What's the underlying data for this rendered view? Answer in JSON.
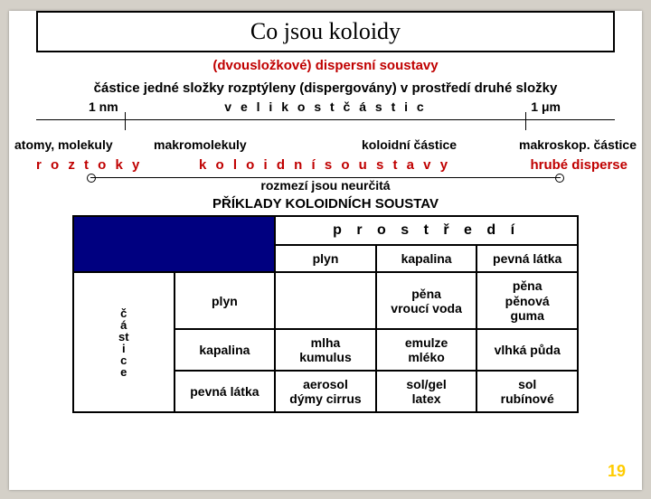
{
  "title": "Co jsou koloidy",
  "subtitle": "(dvousložkové) dispersní soustavy",
  "description": "částice jedné složky rozptýleny (dispergovány) v prostředí druhé složky",
  "scale": {
    "left": "1 nm",
    "center": "v e l i k o s t   č á s t i c",
    "right": "1 μm"
  },
  "row1": {
    "a": "atomy, molekuly",
    "b": "makromolekuly",
    "c": "koloidní částice",
    "d": "makroskop. částice"
  },
  "row2": {
    "roztoky": "r o z t o k y",
    "koloid": "k o l o i d n í   s o u s t a v y",
    "hrube": "hrubé disperse"
  },
  "rozmezi": "rozmezí jsou neurčitá",
  "examples_title": "PŘÍKLADY KOLOIDNÍCH SOUSTAV",
  "table": {
    "env_header": "p r o s t ř e d í",
    "col_headers": [
      "plyn",
      "kapalina",
      "pevná látka"
    ],
    "side_label": [
      "č",
      "á",
      "st",
      "i",
      "c",
      "e"
    ],
    "rows": [
      {
        "label": "plyn",
        "cells": [
          "",
          "pěna\nvroucí voda",
          "pěna\npěnová\nguma"
        ]
      },
      {
        "label": "kapalina",
        "cells": [
          "mlha\nkumulus",
          "emulze\nmléko",
          "vlhká půda"
        ]
      },
      {
        "label": "pevná látka",
        "cells": [
          "aerosol\ndýmy  cirrus",
          "sol/gel\nlatex",
          "sol\nrubínové"
        ]
      }
    ]
  },
  "page_number": "19",
  "colors": {
    "accent_red": "#c00000",
    "corner_blue": "#000080",
    "pagenum": "#ffcc00",
    "bg": "#d4d0c8"
  }
}
